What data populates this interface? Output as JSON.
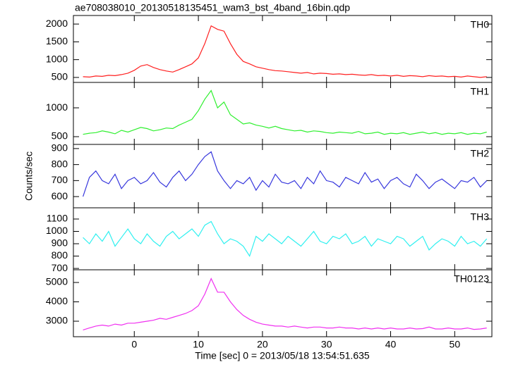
{
  "chart_data": {
    "type": "line",
    "title": "ae708038010_20130518135451_wam3_bst_4band_16bin.qdp",
    "x_label": "Time [sec] 0 = 2013/05/18 13:54:51.635",
    "y_label": "Counts/sec",
    "x": [
      -8,
      -7,
      -6,
      -5,
      -4,
      -3,
      -2,
      -1,
      0,
      1,
      2,
      3,
      4,
      5,
      6,
      7,
      8,
      9,
      10,
      11,
      12,
      13,
      14,
      15,
      16,
      17,
      18,
      19,
      20,
      21,
      22,
      23,
      24,
      25,
      26,
      27,
      28,
      29,
      30,
      31,
      32,
      33,
      34,
      35,
      36,
      37,
      38,
      39,
      40,
      41,
      42,
      43,
      44,
      45,
      46,
      47,
      48,
      49,
      50,
      51,
      52,
      53,
      54,
      55
    ],
    "xlim": [
      -9.5,
      55.8
    ],
    "xticks": [
      0,
      10,
      20,
      30,
      40,
      50
    ],
    "panels": [
      {
        "name": "TH0",
        "color": "#ff2020",
        "ylim": [
          360,
          2240
        ],
        "yticks": [
          500,
          1000,
          1500,
          2000
        ],
        "values": [
          520,
          510,
          540,
          530,
          560,
          550,
          580,
          620,
          700,
          820,
          860,
          780,
          720,
          680,
          650,
          720,
          800,
          880,
          1050,
          1450,
          1950,
          1850,
          1800,
          1450,
          1150,
          950,
          880,
          800,
          760,
          720,
          690,
          680,
          660,
          640,
          620,
          640,
          600,
          620,
          610,
          590,
          600,
          580,
          590,
          570,
          560,
          580,
          550,
          560,
          540,
          560,
          530,
          550,
          540,
          520,
          550,
          530,
          540,
          520,
          530,
          510,
          540,
          520,
          500,
          520
        ]
      },
      {
        "name": "TH1",
        "color": "#30f030",
        "ylim": [
          366,
          1440
        ],
        "yticks": [
          500,
          1000
        ],
        "values": [
          540,
          560,
          570,
          600,
          580,
          550,
          610,
          580,
          620,
          660,
          640,
          600,
          620,
          650,
          640,
          700,
          750,
          800,
          950,
          1150,
          1300,
          1000,
          1100,
          880,
          800,
          720,
          740,
          700,
          680,
          650,
          680,
          640,
          620,
          600,
          610,
          580,
          600,
          590,
          570,
          560,
          580,
          570,
          560,
          590,
          550,
          560,
          580,
          540,
          560,
          550,
          570,
          540,
          560,
          580,
          550,
          570,
          540,
          560,
          550,
          570,
          540,
          560,
          550,
          580
        ]
      },
      {
        "name": "TH2",
        "color": "#3838dd",
        "ylim": [
          530,
          926
        ],
        "yticks": [
          600,
          700,
          800,
          900
        ],
        "values": [
          600,
          720,
          760,
          700,
          680,
          740,
          650,
          700,
          720,
          680,
          700,
          750,
          690,
          660,
          720,
          760,
          700,
          740,
          800,
          850,
          880,
          760,
          700,
          650,
          700,
          680,
          720,
          640,
          700,
          660,
          740,
          690,
          680,
          700,
          650,
          720,
          680,
          760,
          700,
          690,
          660,
          720,
          700,
          680,
          750,
          690,
          710,
          650,
          700,
          720,
          680,
          660,
          740,
          700,
          650,
          690,
          710,
          680,
          650,
          700,
          690,
          720,
          660,
          700
        ]
      },
      {
        "name": "TH3",
        "color": "#30f0f0",
        "ylim": [
          689,
          1191
        ],
        "yticks": [
          700,
          800,
          900,
          1000,
          1100
        ],
        "values": [
          950,
          900,
          980,
          920,
          1000,
          880,
          950,
          1020,
          940,
          900,
          980,
          920,
          880,
          960,
          1000,
          940,
          980,
          1020,
          960,
          1050,
          1080,
          980,
          900,
          940,
          920,
          880,
          800,
          960,
          920,
          980,
          940,
          900,
          960,
          920,
          880,
          940,
          1000,
          920,
          900,
          960,
          940,
          980,
          900,
          920,
          960,
          880,
          940,
          920,
          900,
          960,
          940,
          880,
          920,
          960,
          850,
          900,
          940,
          920,
          880,
          960,
          900,
          920,
          880,
          940
        ]
      },
      {
        "name": "TH0123",
        "color": "#f030f0",
        "ylim": [
          2200,
          5655
        ],
        "yticks": [
          3000,
          4000,
          5000
        ],
        "values": [
          2550,
          2650,
          2750,
          2800,
          2750,
          2850,
          2800,
          2900,
          2900,
          2950,
          3000,
          3050,
          3150,
          3100,
          3200,
          3300,
          3400,
          3550,
          3800,
          4400,
          5200,
          4500,
          4500,
          4000,
          3600,
          3300,
          3100,
          2950,
          2850,
          2800,
          2750,
          2750,
          2700,
          2750,
          2700,
          2650,
          2700,
          2700,
          2650,
          2650,
          2700,
          2650,
          2650,
          2600,
          2650,
          2600,
          2650,
          2600,
          2650,
          2600,
          2600,
          2650,
          2600,
          2620,
          2700,
          2600,
          2600,
          2650,
          2600,
          2600,
          2650,
          2580,
          2600,
          2650
        ]
      }
    ]
  }
}
